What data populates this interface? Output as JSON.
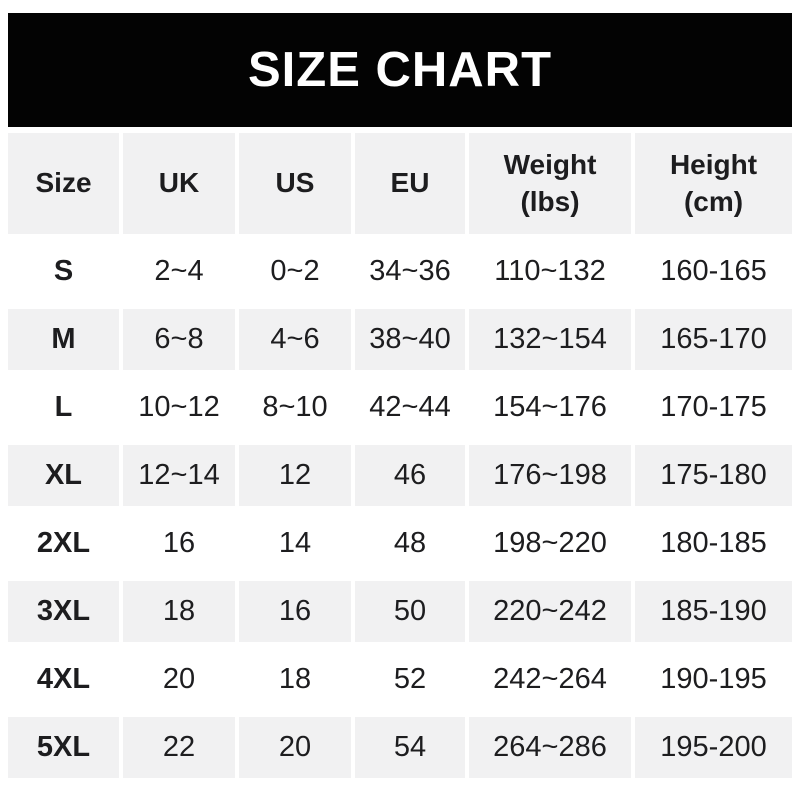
{
  "title": "SIZE CHART",
  "colors": {
    "banner_bg": "#030303",
    "banner_text": "#ffffff",
    "row_alt_bg": "#f1f1f2",
    "row_bg": "#ffffff",
    "text": "#1d1d1f"
  },
  "chart_data": {
    "type": "table",
    "title": "SIZE CHART",
    "columns": [
      "Size",
      "UK",
      "US",
      "EU",
      "Weight (lbs)",
      "Height (cm)"
    ],
    "rows": [
      [
        "S",
        "2~4",
        "0~2",
        "34~36",
        "110~132",
        "160-165"
      ],
      [
        "M",
        "6~8",
        "4~6",
        "38~40",
        "132~154",
        "165-170"
      ],
      [
        "L",
        "10~12",
        "8~10",
        "42~44",
        "154~176",
        "170-175"
      ],
      [
        "XL",
        "12~14",
        "12",
        "46",
        "176~198",
        "175-180"
      ],
      [
        "2XL",
        "16",
        "14",
        "48",
        "198~220",
        "180-185"
      ],
      [
        "3XL",
        "18",
        "16",
        "50",
        "220~242",
        "185-190"
      ],
      [
        "4XL",
        "20",
        "18",
        "52",
        "242~264",
        "190-195"
      ],
      [
        "5XL",
        "22",
        "20",
        "54",
        "264~286",
        "195-200"
      ]
    ],
    "layout": {
      "header_bg": "#f1f1f2",
      "zebra": "rows alternate white / #f1f1f2 starting with white for S",
      "range_separator_weight_uk_us_eu": "~",
      "range_separator_height": "-"
    }
  }
}
